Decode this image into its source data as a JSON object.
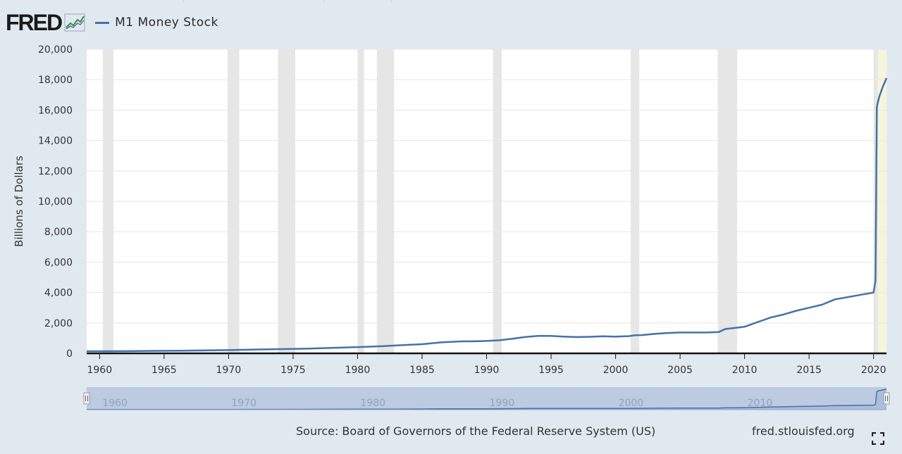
{
  "header": {
    "logo_text": "FRED",
    "legend_label": "M1 Money Stock"
  },
  "footer": {
    "source": "Source: Board of Governors of the Federal Reserve System (US)",
    "site": "fred.stlouisfed.org"
  },
  "icons": {
    "logo_spark": "trend-line-icon",
    "fullscreen": "fullscreen-icon"
  },
  "colors": {
    "line": "#4572a7",
    "background": "#e1e9f0",
    "plot_background": "#ffffff",
    "recession": "#e6e6e6",
    "highlight": "#f5f5dc"
  },
  "chart_data": {
    "type": "line",
    "title": "",
    "xlabel": "",
    "ylabel": "Billions of Dollars",
    "xlim": [
      1959.0,
      2021.0
    ],
    "ylim": [
      0,
      20000
    ],
    "grid": true,
    "y_ticks": [
      0,
      2000,
      4000,
      6000,
      8000,
      10000,
      12000,
      14000,
      16000,
      18000,
      20000
    ],
    "y_tick_labels": [
      "0",
      "2,000",
      "4,000",
      "6,000",
      "8,000",
      "10,000",
      "12,000",
      "14,000",
      "16,000",
      "18,000",
      "20,000"
    ],
    "x_ticks": [
      1960,
      1965,
      1970,
      1975,
      1980,
      1985,
      1990,
      1995,
      2000,
      2005,
      2010,
      2015,
      2020
    ],
    "x_tick_labels": [
      "1960",
      "1965",
      "1970",
      "1975",
      "1980",
      "1985",
      "1990",
      "1995",
      "2000",
      "2005",
      "2010",
      "2015",
      "2020"
    ],
    "recessions": [
      [
        1960.25,
        1961.08
      ],
      [
        1969.92,
        1970.83
      ],
      [
        1973.83,
        1975.17
      ],
      [
        1980.0,
        1980.5
      ],
      [
        1981.5,
        1982.83
      ],
      [
        1990.5,
        1991.17
      ],
      [
        2001.17,
        2001.83
      ],
      [
        2007.92,
        2009.42
      ],
      [
        2020.0,
        2020.33
      ]
    ],
    "highlight_range": [
      2020.0,
      2021.0
    ],
    "series": [
      {
        "name": "M1 Money Stock",
        "x": [
          1959.0,
          1962.0,
          1965.0,
          1968.0,
          1970.0,
          1972.0,
          1974.0,
          1976.0,
          1978.0,
          1980.0,
          1982.0,
          1983.0,
          1985.0,
          1986.5,
          1988.0,
          1989.0,
          1990.0,
          1991.0,
          1992.0,
          1993.0,
          1994.0,
          1995.0,
          1996.0,
          1997.0,
          1998.0,
          1999.0,
          2000.0,
          2001.0,
          2001.5,
          2002.0,
          2003.0,
          2004.0,
          2005.0,
          2006.0,
          2007.0,
          2008.0,
          2008.5,
          2009.0,
          2010.0,
          2011.0,
          2011.5,
          2012.0,
          2013.0,
          2014.0,
          2015.0,
          2016.0,
          2017.0,
          2018.0,
          2019.0,
          2020.0,
          2020.15,
          2020.25,
          2020.33,
          2020.45,
          2020.7,
          2021.0
        ],
        "values": [
          140,
          145,
          165,
          190,
          215,
          250,
          280,
          305,
          355,
          410,
          470,
          525,
          600,
          720,
          785,
          790,
          815,
          860,
          965,
          1080,
          1150,
          1150,
          1100,
          1070,
          1090,
          1120,
          1100,
          1130,
          1190,
          1200,
          1280,
          1340,
          1370,
          1370,
          1370,
          1400,
          1600,
          1650,
          1750,
          2050,
          2200,
          2350,
          2550,
          2800,
          3000,
          3200,
          3550,
          3700,
          3850,
          4000,
          4800,
          16200,
          16500,
          16900,
          17500,
          18100
        ]
      }
    ]
  }
}
